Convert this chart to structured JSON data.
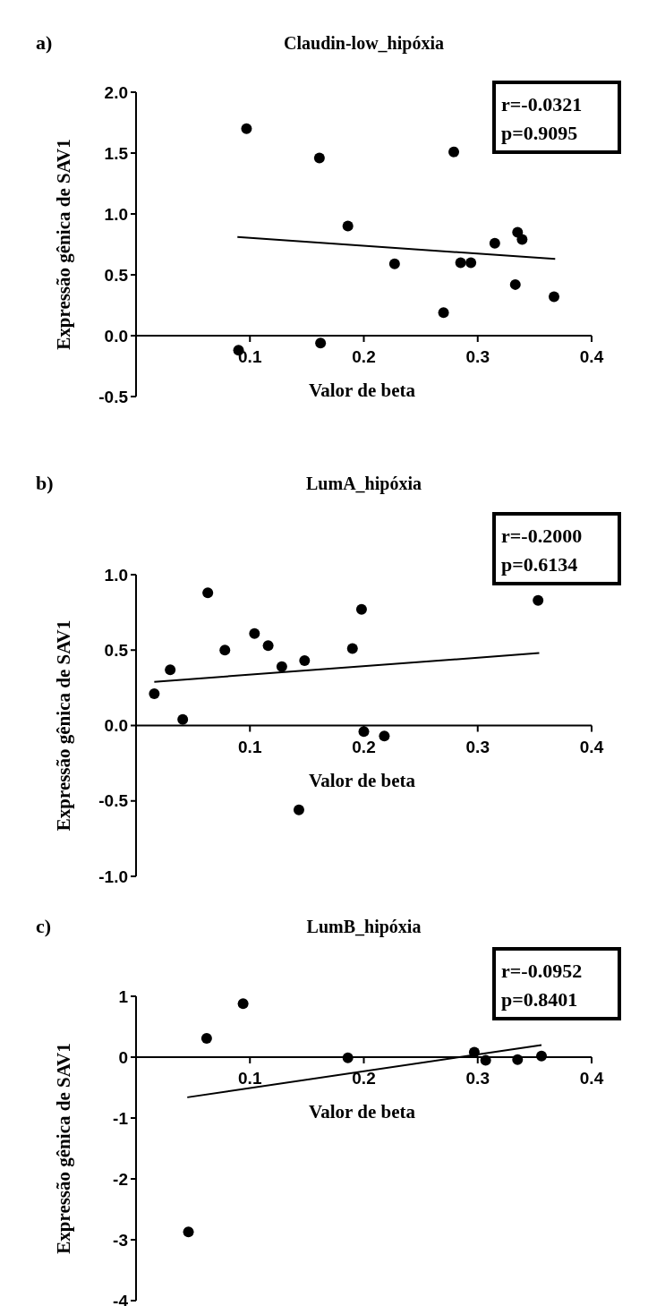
{
  "chart_data": [
    {
      "type": "scatter",
      "title": "Claudin-low_hipóxia",
      "xlabel": "Valor de beta",
      "ylabel": "Expressão gênica de SAV1",
      "annotations": [
        "a)",
        "r=-0.0321",
        "p=0.9095"
      ],
      "xlim": [
        0,
        0.4
      ],
      "ylim": [
        -0.5,
        2.0
      ],
      "xticks": [
        0.1,
        0.2,
        0.3,
        0.4
      ],
      "yticks": [
        {
          "value": -0.5,
          "label": "-0.5"
        },
        {
          "value": 0,
          "label": "0.0"
        },
        {
          "value": 0.5,
          "label": "0.5"
        },
        {
          "value": 1,
          "label": "1.0"
        },
        {
          "value": 1.5,
          "label": "1.5"
        },
        {
          "value": 2,
          "label": "2.0"
        }
      ],
      "marker": "circle",
      "series": [
        {
          "type": "scatter",
          "color": "#000000",
          "x": [
            0.09,
            0.097,
            0.161,
            0.162,
            0.186,
            0.227,
            0.27,
            0.279,
            0.285,
            0.294,
            0.315,
            0.335,
            0.339,
            0.333,
            0.367
          ],
          "values": [
            -0.12,
            1.7,
            1.46,
            -0.06,
            0.9,
            0.59,
            0.19,
            1.51,
            0.6,
            0.6,
            0.76,
            0.85,
            0.79,
            0.42,
            0.32
          ]
        },
        {
          "type": "line",
          "marker": "none",
          "color": "#000000",
          "x": [
            0.089,
            0.368
          ],
          "values": [
            0.81,
            0.63
          ]
        }
      ]
    },
    {
      "type": "scatter",
      "title": "LumA_hipóxia",
      "xlabel": "Valor de beta",
      "ylabel": "Expressão gênica de SAV1",
      "annotations": [
        "b)",
        "r=-0.2000",
        "p=0.6134"
      ],
      "xlim": [
        0,
        0.4
      ],
      "ylim": [
        -1.0,
        1.0
      ],
      "xticks": [
        0.1,
        0.2,
        0.3,
        0.4
      ],
      "yticks": [
        {
          "value": -1,
          "label": "-1.0"
        },
        {
          "value": -0.5,
          "label": "-0.5"
        },
        {
          "value": 0,
          "label": "0.0"
        },
        {
          "value": 0.5,
          "label": "0.5"
        },
        {
          "value": 1,
          "label": "1.0"
        }
      ],
      "marker": "circle",
      "series": [
        {
          "type": "scatter",
          "color": "#000000",
          "x": [
            0.016,
            0.03,
            0.041,
            0.063,
            0.078,
            0.104,
            0.116,
            0.128,
            0.148,
            0.19,
            0.198,
            0.2,
            0.218,
            0.143,
            0.353
          ],
          "values": [
            0.21,
            0.37,
            0.04,
            0.88,
            0.5,
            0.61,
            0.53,
            0.39,
            0.43,
            0.51,
            0.77,
            -0.04,
            -0.07,
            -0.56,
            0.83
          ]
        },
        {
          "type": "line",
          "marker": "none",
          "color": "#000000",
          "x": [
            0.016,
            0.354
          ],
          "values": [
            0.29,
            0.48
          ]
        }
      ]
    },
    {
      "type": "scatter",
      "title": "LumB_hipóxia",
      "xlabel": "Valor de beta",
      "ylabel": "Expressão gênica de SAV1",
      "annotations": [
        "c)",
        "r=-0.0952",
        "p=0.8401"
      ],
      "xlim": [
        0,
        0.4
      ],
      "ylim": [
        -4,
        1
      ],
      "xticks": [
        0.1,
        0.2,
        0.3,
        0.4
      ],
      "yticks": [
        -4,
        -3,
        -2,
        -1,
        0,
        1
      ],
      "marker": "circle",
      "series": [
        {
          "type": "scatter",
          "color": "#000000",
          "x": [
            0.046,
            0.062,
            0.094,
            0.186,
            0.297,
            0.307,
            0.335,
            0.356
          ],
          "values": [
            -2.87,
            0.31,
            0.88,
            -0.01,
            0.08,
            -0.05,
            -0.04,
            0.02
          ]
        },
        {
          "type": "line",
          "marker": "none",
          "color": "#000000",
          "x": [
            0.045,
            0.356
          ],
          "values": [
            -0.66,
            0.2
          ]
        }
      ]
    }
  ]
}
